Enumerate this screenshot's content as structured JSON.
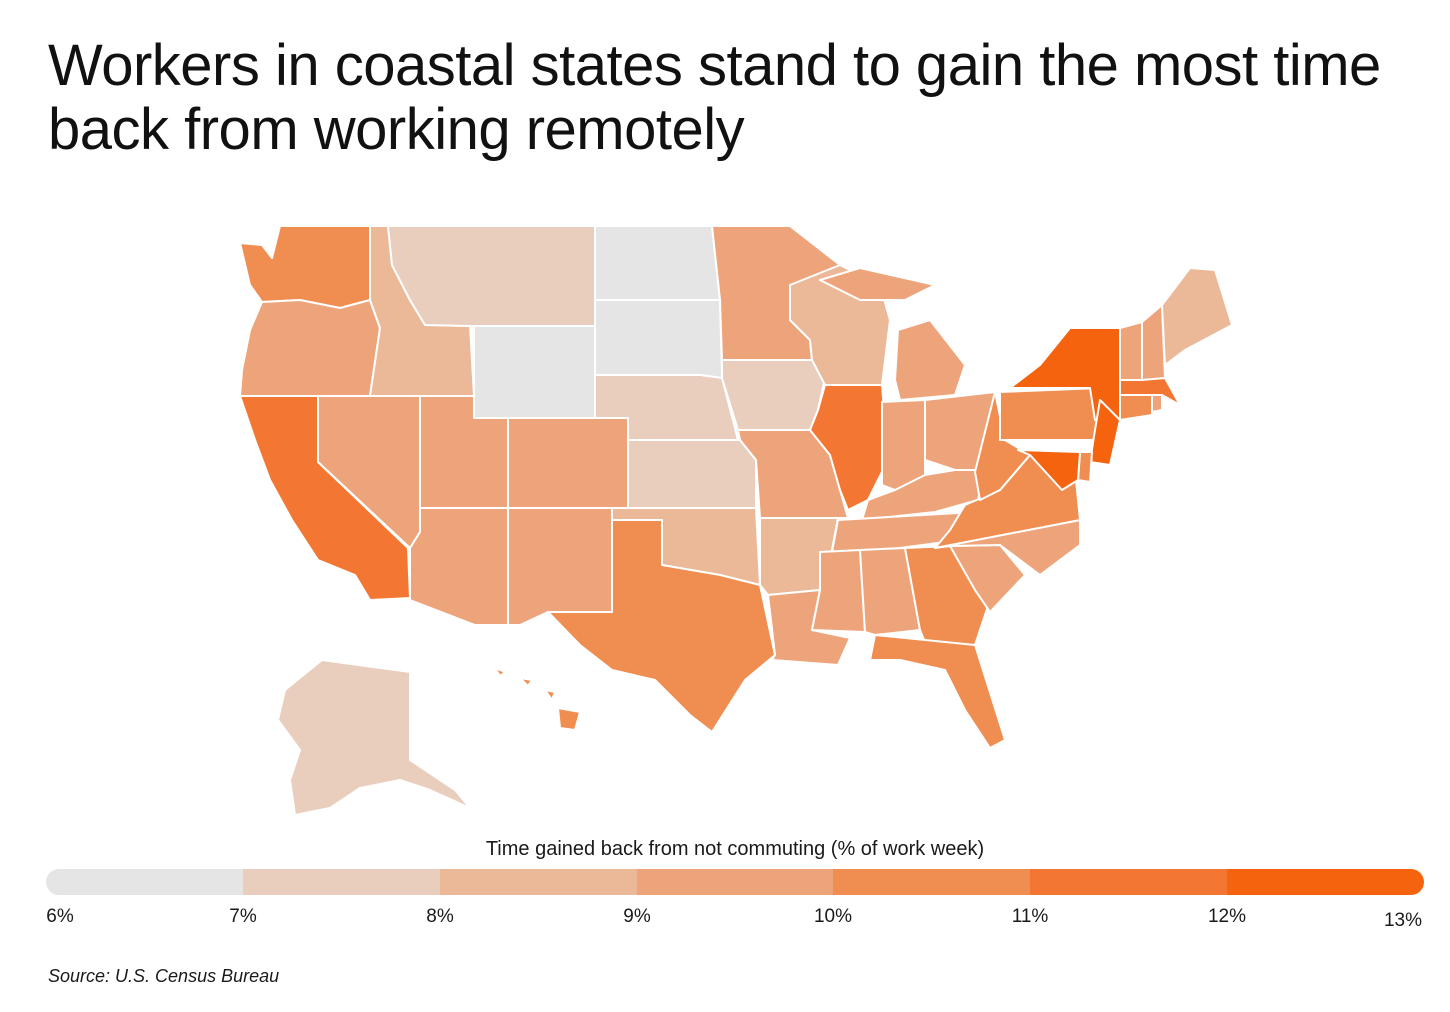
{
  "title": "Workers in coastal states stand to gain the most time back from working remotely",
  "legend": {
    "title": "Time gained back from not commuting (% of work week)",
    "ticks": [
      "6%",
      "7%",
      "8%",
      "9%",
      "10%",
      "11%",
      "12%",
      "13%"
    ],
    "bin_colors": [
      "#e5e5e5",
      "#e9cdbd",
      "#ebb898",
      "#eea47a",
      "#f08d50",
      "#f37732",
      "#f5630f"
    ]
  },
  "source": "Source: U.S. Census Bureau",
  "chart_data": {
    "type": "choropleth",
    "value_unit": "% of work week",
    "bins": [
      [
        6,
        7
      ],
      [
        7,
        8
      ],
      [
        8,
        9
      ],
      [
        9,
        10
      ],
      [
        10,
        11
      ],
      [
        11,
        12
      ],
      [
        12,
        13
      ]
    ],
    "states": {
      "WA": 10.2,
      "OR": 9.5,
      "CA": 11.2,
      "NV": 9.3,
      "ID": 8.5,
      "MT": 7.6,
      "WY": 6.7,
      "UT": 9.3,
      "AZ": 9.2,
      "CO": 9.3,
      "NM": 9.1,
      "ND": 6.6,
      "SD": 6.7,
      "NE": 7.7,
      "KS": 7.8,
      "OK": 8.7,
      "TX": 10.1,
      "MN": 9.4,
      "IA": 7.9,
      "MO": 9.2,
      "AR": 8.6,
      "LA": 9.2,
      "WI": 8.8,
      "IL": 11.1,
      "MI": 9.2,
      "IN": 9.1,
      "OH": 9.0,
      "KY": 9.1,
      "TN": 9.3,
      "MS": 9.2,
      "AL": 9.3,
      "GA": 10.4,
      "FL": 10.2,
      "SC": 9.2,
      "NC": 9.2,
      "VA": 10.4,
      "WV": 10.3,
      "PA": 10.2,
      "NY": 12.4,
      "NJ": 12.2,
      "DE": 10.2,
      "MD": 12.1,
      "CT": 10.8,
      "RI": 9.6,
      "MA": 11.2,
      "VT": 9.0,
      "NH": 9.5,
      "ME": 8.9,
      "AK": 7.4,
      "HI": 10.3
    }
  }
}
